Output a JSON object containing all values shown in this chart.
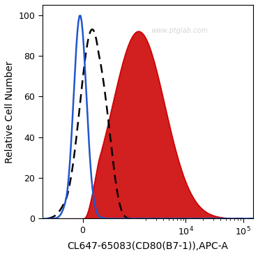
{
  "title": "",
  "xlabel": "CL647-65083(CD80(B7-1)),APC-A",
  "ylabel": "Relative Cell Number",
  "watermark": "www.ptglab.com",
  "background_color": "#ffffff",
  "plot_bg_color": "#ffffff",
  "ylim": [
    0,
    105
  ],
  "yticks": [
    0,
    20,
    40,
    60,
    80,
    100
  ],
  "blue_color": "#2255cc",
  "dashed_color": "#000000",
  "red_color": "#cc0000",
  "red_fill_color": "#cc0000",
  "xlabel_fontsize": 10,
  "ylabel_fontsize": 10,
  "tick_fontsize": 9,
  "linthresh": 300,
  "linscale": 0.25
}
